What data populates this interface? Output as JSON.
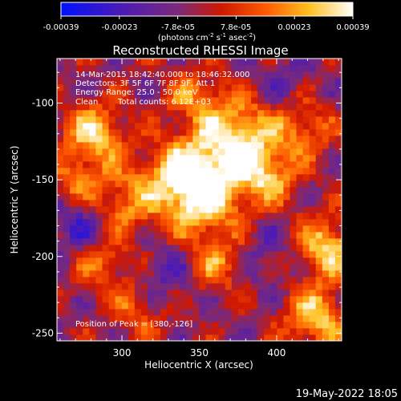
{
  "colorbar": {
    "tick_labels": [
      "-0.00039",
      "-0.00023",
      "-7.8e-05",
      "7.8e-05",
      "0.00023",
      "0.00039"
    ],
    "unit_base": "(photons cm",
    "unit_exp1": "-2",
    "unit_mid": " s",
    "unit_exp2": "-1",
    "unit_tail": " asec",
    "unit_exp3": "-2",
    "unit_close": ")",
    "range": [
      -0.00039,
      0.00039
    ]
  },
  "annotations": {
    "time_range": "14-Mar-2015 18:42:40.000 to 18:46:32.000",
    "detectors": "Detectors: 3F 5F 6F 7F 8F 9F, Att 1",
    "energy": "Energy Range: 25.0 - 50.0 keV",
    "method": "Clean",
    "counts": "Total counts: 6.12E+03",
    "peak": "Position of Peak = [380,-126]"
  },
  "footer": {
    "timestamp": "19-May-2022 18:05"
  },
  "chart_data": {
    "type": "heatmap",
    "title": "Reconstructed RHESSI Image",
    "xlabel": "Heliocentric X (arcsec)",
    "ylabel": "Heliocentric Y (arcsec)",
    "xlim": [
      258,
      442
    ],
    "ylim": [
      -255,
      -71
    ],
    "x_ticks": [
      300,
      350,
      400
    ],
    "y_ticks": [
      -250,
      -200,
      -150,
      -100
    ],
    "peak": [
      380,
      -126
    ],
    "grid": false,
    "colormap": "rhessi-blue-purple-red-yellow-white",
    "blobs": [
      {
        "x": 375,
        "y": -125,
        "amp": 1.0,
        "sigma": 22
      },
      {
        "x": 350,
        "y": -160,
        "amp": 0.95,
        "sigma": 18
      },
      {
        "x": 335,
        "y": -145,
        "amp": 0.55,
        "sigma": 14
      },
      {
        "x": 395,
        "y": -150,
        "amp": 0.45,
        "sigma": 12
      },
      {
        "x": 432,
        "y": -195,
        "amp": 0.85,
        "sigma": 14
      },
      {
        "x": 425,
        "y": -240,
        "amp": 0.8,
        "sigma": 14
      },
      {
        "x": 282,
        "y": -120,
        "amp": 0.8,
        "sigma": 14
      },
      {
        "x": 300,
        "y": -165,
        "amp": 0.6,
        "sigma": 16
      },
      {
        "x": 270,
        "y": -150,
        "amp": 0.5,
        "sigma": 10
      },
      {
        "x": 288,
        "y": -205,
        "amp": 0.5,
        "sigma": 13
      },
      {
        "x": 310,
        "y": -235,
        "amp": 0.45,
        "sigma": 12
      },
      {
        "x": 360,
        "y": -205,
        "amp": 0.55,
        "sigma": 14
      },
      {
        "x": 395,
        "y": -200,
        "amp": -0.25,
        "sigma": 16
      },
      {
        "x": 330,
        "y": -210,
        "amp": -0.35,
        "sigma": 15
      },
      {
        "x": 275,
        "y": -180,
        "amp": -0.45,
        "sigma": 14
      },
      {
        "x": 400,
        "y": -90,
        "amp": -0.25,
        "sigma": 18
      },
      {
        "x": 345,
        "y": -95,
        "amp": 0.4,
        "sigma": 12
      },
      {
        "x": 420,
        "y": -115,
        "amp": 0.5,
        "sigma": 12
      }
    ]
  }
}
